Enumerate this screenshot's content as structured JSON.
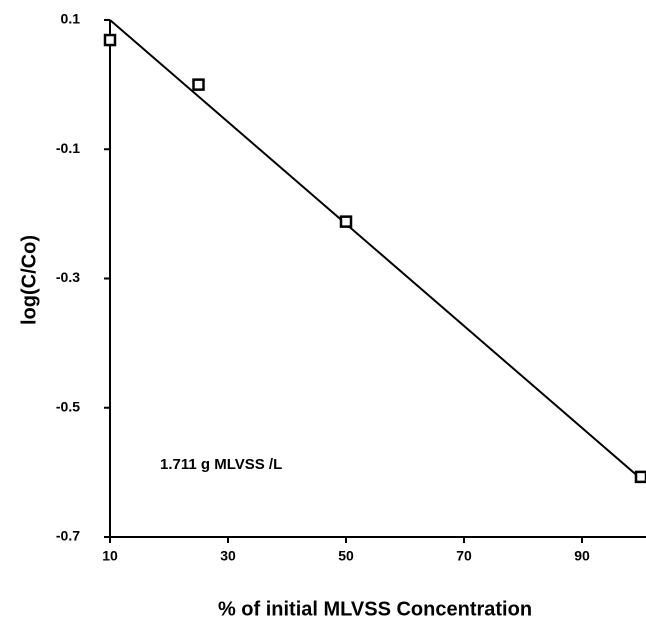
{
  "chart_data": {
    "type": "scatter",
    "x": [
      10,
      25,
      50,
      100
    ],
    "values": [
      0.069,
      0.0,
      -0.212,
      -0.607
    ],
    "fit_line": {
      "x": [
        10,
        100
      ],
      "values": [
        0.1,
        -0.61
      ]
    },
    "xlabel": "% of initial  MLVSS Concentration",
    "ylabel": "log(C/Co)",
    "annotation": "1.711 g MLVSS /L",
    "xlim": [
      10,
      100
    ],
    "xticks": [
      10,
      30,
      50,
      70,
      90
    ],
    "ylim": [
      -0.7,
      0.1
    ],
    "yticks": [
      0.1,
      -0.1,
      -0.3,
      -0.5,
      -0.7
    ],
    "color": "#000000",
    "grid": false
  }
}
